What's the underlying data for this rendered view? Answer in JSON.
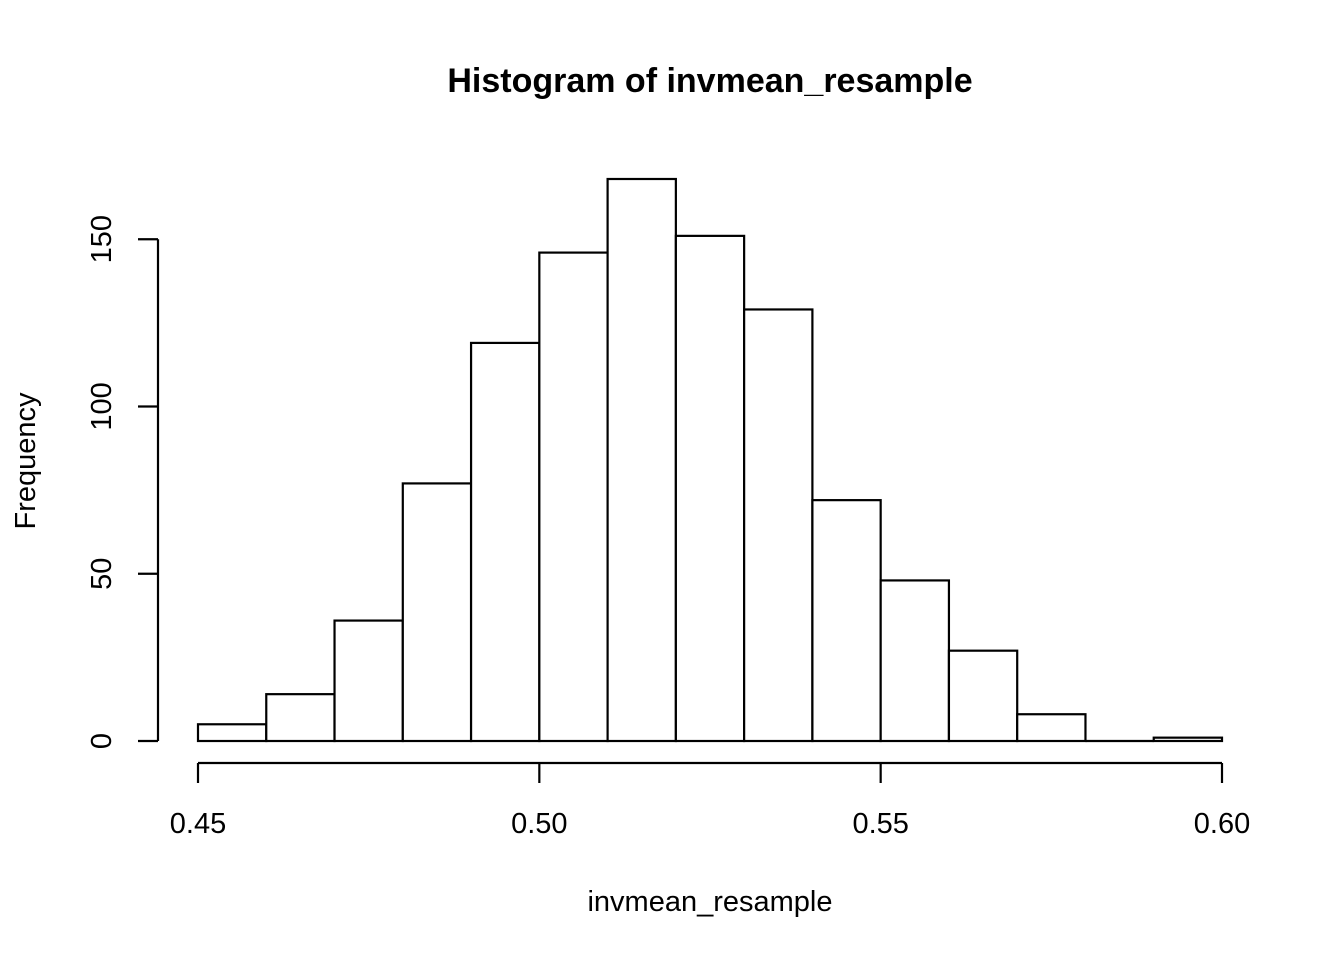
{
  "chart_data": {
    "type": "bar",
    "title": "Histogram of invmean_resample",
    "xlabel": "invmean_resample",
    "ylabel": "Frequency",
    "bin_edges": [
      0.45,
      0.46,
      0.47,
      0.48,
      0.49,
      0.5,
      0.51,
      0.52,
      0.53,
      0.54,
      0.55,
      0.56,
      0.57,
      0.58,
      0.59,
      0.6
    ],
    "values": [
      5,
      14,
      36,
      77,
      119,
      146,
      168,
      151,
      129,
      72,
      48,
      27,
      8,
      0,
      1
    ],
    "xlim": [
      0.45,
      0.6
    ],
    "ylim": [
      0,
      168
    ],
    "x_ticks": [
      {
        "value": 0.45,
        "label": "0.45"
      },
      {
        "value": 0.5,
        "label": "0.50"
      },
      {
        "value": 0.55,
        "label": "0.55"
      },
      {
        "value": 0.6,
        "label": "0.60"
      }
    ],
    "y_ticks": [
      {
        "value": 0,
        "label": "0"
      },
      {
        "value": 50,
        "label": "50"
      },
      {
        "value": 100,
        "label": "100"
      },
      {
        "value": 150,
        "label": "150"
      }
    ],
    "grid": false,
    "legend": "none",
    "colors": {
      "fill": "#ffffff",
      "stroke": "#000000"
    }
  }
}
